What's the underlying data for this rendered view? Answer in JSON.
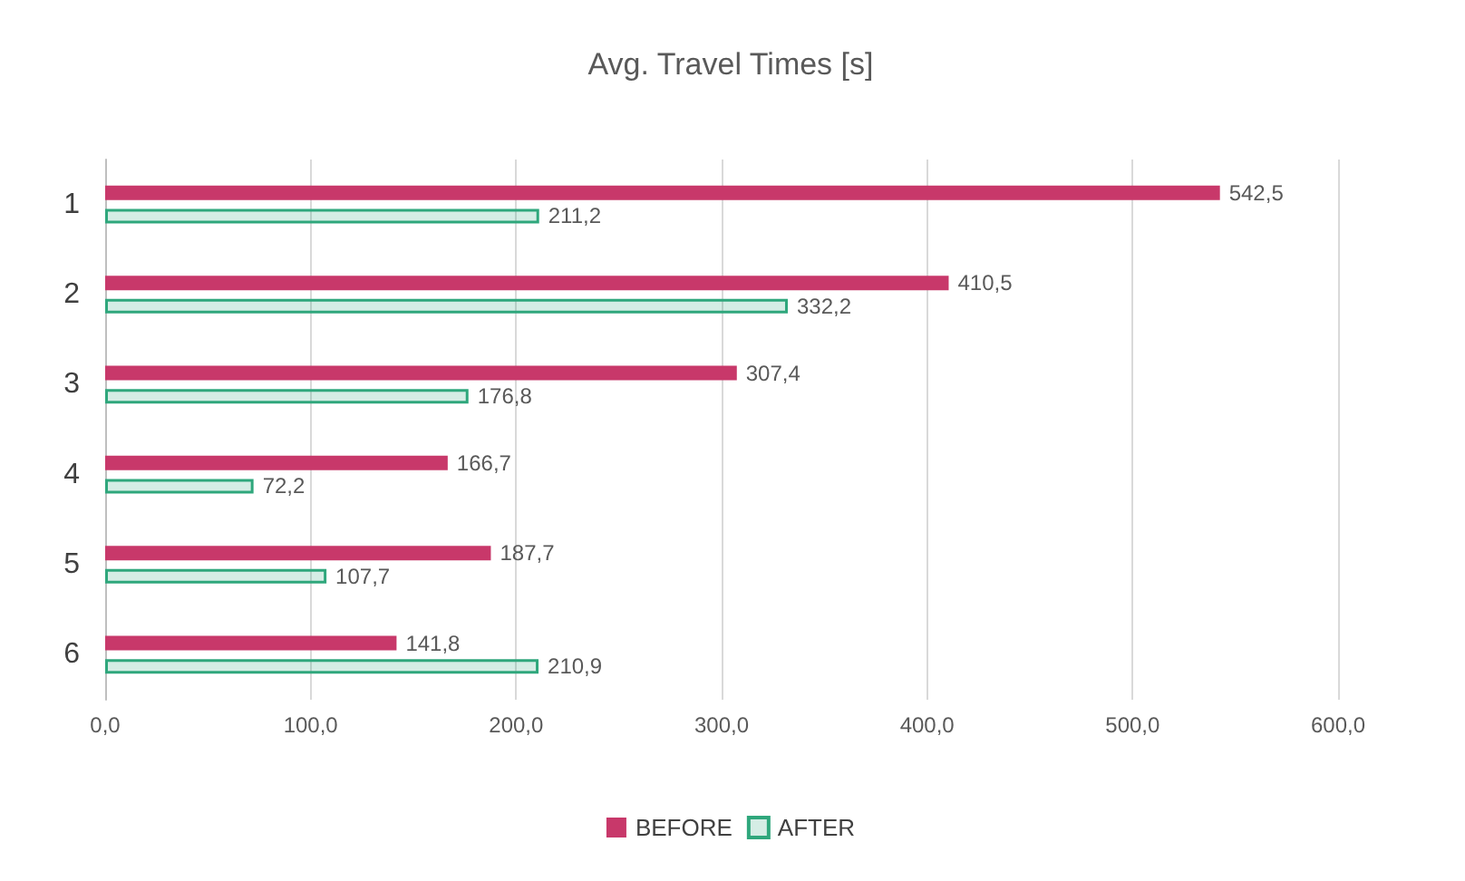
{
  "chart_data": {
    "type": "bar",
    "title": "Avg. Travel Times [s]",
    "orientation": "horizontal",
    "categories": [
      "1",
      "2",
      "3",
      "4",
      "5",
      "6"
    ],
    "series": [
      {
        "name": "BEFORE",
        "color": "#c8386a",
        "values": [
          542.5,
          410.5,
          307.4,
          166.7,
          187.7,
          141.8
        ],
        "value_labels": [
          "542,5",
          "410,5",
          "307,4",
          "166,7",
          "187,7",
          "141,8"
        ]
      },
      {
        "name": "AFTER",
        "color": "#2fa77c",
        "values": [
          211.2,
          332.2,
          176.8,
          72.2,
          107.7,
          210.9
        ],
        "value_labels": [
          "211,2",
          "332,2",
          "176,8",
          "72,2",
          "107,7",
          "210,9"
        ]
      }
    ],
    "xlim": [
      0,
      600
    ],
    "xticks": [
      {
        "value": 0,
        "label": "0,0"
      },
      {
        "value": 100,
        "label": "100,0"
      },
      {
        "value": 200,
        "label": "200,0"
      },
      {
        "value": 300,
        "label": "300,0"
      },
      {
        "value": 400,
        "label": "400,0"
      },
      {
        "value": 500,
        "label": "500,0"
      },
      {
        "value": 600,
        "label": "600,0"
      }
    ],
    "grid": "x",
    "legend": "bottom"
  }
}
